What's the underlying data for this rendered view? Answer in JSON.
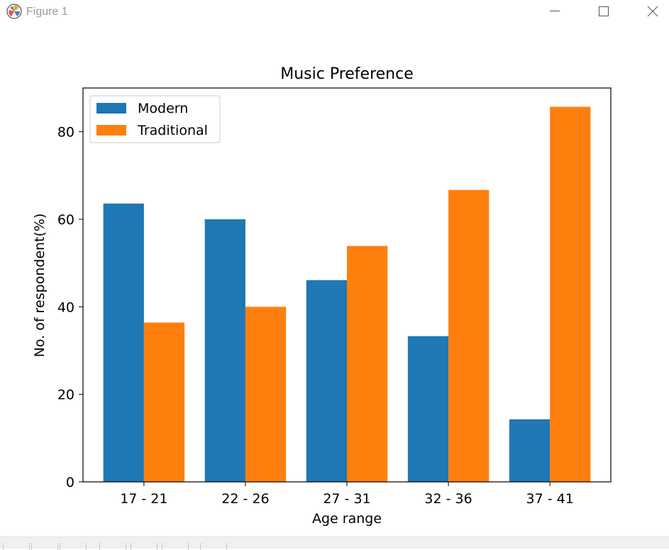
{
  "window": {
    "title": "Figure 1",
    "icon": "matplotlib-icon"
  },
  "controls": [
    "minimize-icon",
    "maximize-icon",
    "close-icon"
  ],
  "toolbar": {
    "buttons": [
      "home-icon",
      "back-icon",
      "forward-icon",
      "pan-icon",
      "zoom-icon",
      "configure-icon",
      "save-icon"
    ]
  },
  "chart_data": {
    "type": "bar",
    "title": "Music Preference",
    "xlabel": "Age range",
    "ylabel": "No. of respondent(%)",
    "categories": [
      "17 - 21",
      "22 - 26",
      "27 - 31",
      "32 - 36",
      "37 - 41"
    ],
    "series": [
      {
        "name": "Modern",
        "color": "#1f77b4",
        "values": [
          63.6,
          60,
          46.1,
          33.3,
          14.3
        ]
      },
      {
        "name": "Traditional",
        "color": "#ff7f0e",
        "values": [
          36.4,
          40,
          53.9,
          66.7,
          85.7
        ]
      }
    ],
    "ylim": [
      0,
      90
    ],
    "yticks": [
      0,
      20,
      40,
      60,
      80
    ],
    "grid": false,
    "legend": "top-left"
  }
}
